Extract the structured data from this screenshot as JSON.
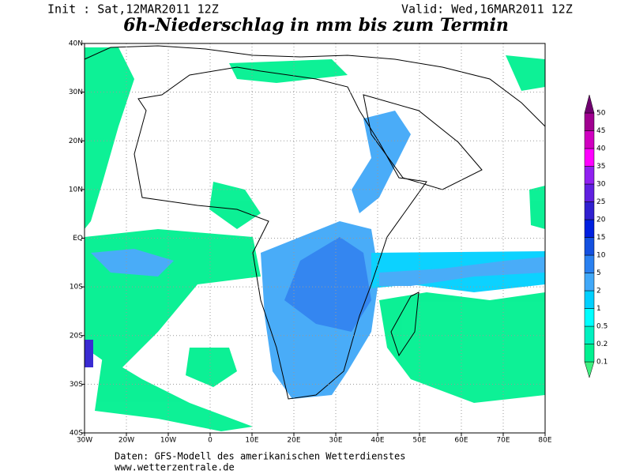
{
  "header": {
    "init": "Init : Sat,12MAR2011 12Z",
    "valid": "Valid: Wed,16MAR2011 12Z",
    "title": "6h-Niederschlag in mm bis zum Termin"
  },
  "map": {
    "lon_labels": [
      "30W",
      "20W",
      "10W",
      "0",
      "10E",
      "20E",
      "30E",
      "40E",
      "50E",
      "60E",
      "70E",
      "80E"
    ],
    "lat_labels": [
      "40S",
      "30S",
      "20S",
      "10S",
      "EQ",
      "10N",
      "20N",
      "30N",
      "40N"
    ]
  },
  "colorbar": {
    "labels": [
      "0.1",
      "0.2",
      "0.5",
      "1",
      "2",
      "5",
      "10",
      "15",
      "20",
      "25",
      "30",
      "35",
      "40",
      "45",
      "50"
    ],
    "colors": [
      "#40f080",
      "#00f090",
      "#00f0c0",
      "#00ffff",
      "#00d0ff",
      "#40a8f8",
      "#2a80f0",
      "#1450e0",
      "#0020e0",
      "#3020d0",
      "#6020e0",
      "#9020f0",
      "#ff00ff",
      "#d000c0",
      "#a00090",
      "#700070"
    ]
  },
  "footer": {
    "source": "Daten: GFS-Modell des amerikanischen Wetterdienstes",
    "url": "www.wetterzentrale.de"
  }
}
